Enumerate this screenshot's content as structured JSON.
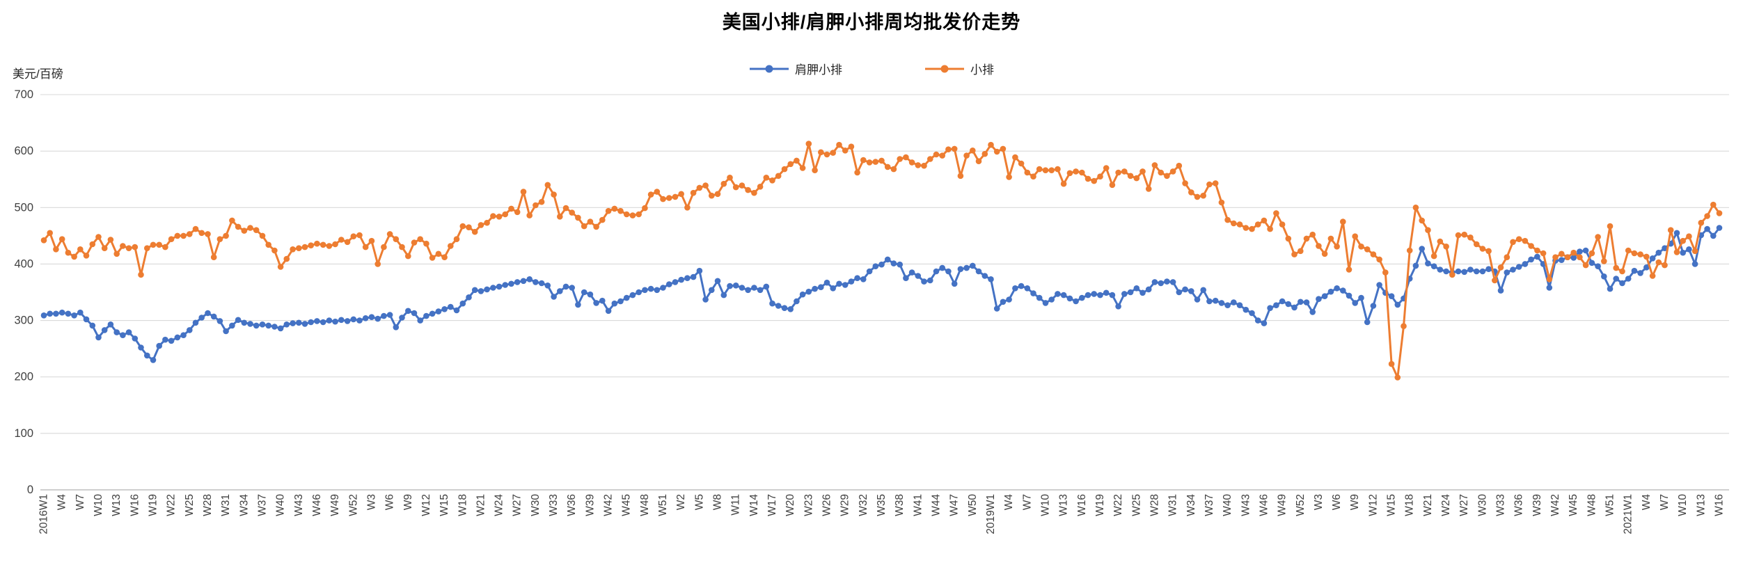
{
  "title": "美国小排/肩胛小排周均批发价走势",
  "y_unit_label": "美元/百磅",
  "colors": {
    "blue_series": "#4472C4",
    "orange_series": "#ED7D31",
    "gridline": "#D9D9D9",
    "axis_line": "#BFBFBF",
    "tick_text": "#404040"
  },
  "chart_data": {
    "type": "line",
    "title": "美国小排/肩胛小排周均批发价走势",
    "ylabel": "美元/百磅",
    "ylim": [
      0,
      700
    ],
    "ytick_step": 100,
    "grid": true,
    "legend_position": "top",
    "marker": "circle",
    "x_label_every": 3,
    "x_labels": [
      "2016W1",
      "W4",
      "W7",
      "W10",
      "W13",
      "W16",
      "W19",
      "W22",
      "W25",
      "W28",
      "W31",
      "W34",
      "W37",
      "W40",
      "W43",
      "W46",
      "W49",
      "W52",
      "W3",
      "W6",
      "W9",
      "W12",
      "W15",
      "W18",
      "W21",
      "W24",
      "W27",
      "W30",
      "W33",
      "W36",
      "W39",
      "W42",
      "W45",
      "W48",
      "W51",
      "W2",
      "W5",
      "W8",
      "W11",
      "W14",
      "W17",
      "W20",
      "W23",
      "W26",
      "W29",
      "W32",
      "W35",
      "W38",
      "W41",
      "W44",
      "W47",
      "W50",
      "2019W1",
      "W4",
      "W7",
      "W10",
      "W13",
      "W16",
      "W19",
      "W22",
      "W25",
      "W28",
      "W31",
      "W34",
      "W37",
      "W40",
      "W43",
      "W46",
      "W49",
      "W52",
      "W3",
      "W6",
      "W9",
      "W12",
      "W15",
      "W18",
      "W21",
      "W24",
      "W27",
      "W30",
      "W33",
      "W36",
      "W39",
      "W42",
      "W45",
      "W48",
      "W51",
      "2021W1",
      "W4",
      "W7",
      "W10",
      "W13",
      "W16"
    ],
    "series": [
      {
        "name": "肩胛小排",
        "color": "#4472C4",
        "values": [
          309,
          312,
          312,
          314,
          312,
          309,
          314,
          302,
          291,
          270,
          283,
          293,
          279,
          274,
          279,
          268,
          252,
          238,
          230,
          255,
          266,
          264,
          270,
          274,
          283,
          296,
          305,
          313,
          307,
          299,
          281,
          291,
          301,
          296,
          294,
          291,
          293,
          291,
          289,
          286,
          293,
          295,
          296,
          294,
          297,
          299,
          297,
          300,
          298,
          301,
          299,
          302,
          300,
          304,
          306,
          303,
          308,
          310,
          288,
          305,
          317,
          313,
          300,
          308,
          312,
          316,
          320,
          324,
          318,
          330,
          341,
          354,
          352,
          355,
          358,
          360,
          363,
          365,
          368,
          370,
          373,
          368,
          366,
          362,
          342,
          352,
          360,
          358,
          328,
          350,
          346,
          331,
          335,
          317,
          330,
          334,
          340,
          345,
          350,
          354,
          356,
          354,
          358,
          364,
          368,
          372,
          375,
          377,
          388,
          337,
          354,
          370,
          345,
          361,
          362,
          358,
          354,
          358,
          354,
          360,
          330,
          326,
          322,
          320,
          334,
          346,
          351,
          356,
          359,
          367,
          357,
          365,
          363,
          369,
          375,
          373,
          387,
          396,
          399,
          408,
          401,
          399,
          375,
          385,
          379,
          369,
          371,
          387,
          393,
          387,
          365,
          391,
          393,
          397,
          387,
          379,
          373,
          321,
          333,
          337,
          357,
          361,
          357,
          348,
          340,
          331,
          337,
          347,
          345,
          339,
          334,
          340,
          345,
          347,
          345,
          349,
          345,
          325,
          347,
          350,
          357,
          349,
          355,
          368,
          366,
          369,
          368,
          350,
          355,
          352,
          337,
          354,
          334,
          335,
          331,
          327,
          332,
          327,
          319,
          313,
          300,
          295,
          322,
          327,
          334,
          329,
          323,
          333,
          332,
          315,
          338,
          343,
          351,
          357,
          353,
          344,
          331,
          340,
          297,
          326,
          363,
          349,
          343,
          328,
          339,
          374,
          397,
          427,
          401,
          396,
          390,
          387,
          385,
          387,
          386,
          390,
          387,
          387,
          391,
          387,
          353,
          385,
          390,
          395,
          400,
          408,
          413,
          400,
          358,
          406,
          407,
          412,
          411,
          422,
          424,
          402,
          396,
          378,
          356,
          374,
          366,
          374,
          388,
          384,
          394,
          410,
          420,
          428,
          436,
          455,
          420,
          426,
          400,
          451,
          462,
          450,
          464
        ]
      },
      {
        "name": "小排",
        "color": "#ED7D31",
        "values": [
          442,
          455,
          426,
          444,
          420,
          413,
          426,
          415,
          435,
          448,
          428,
          443,
          418,
          432,
          428,
          430,
          381,
          428,
          434,
          434,
          430,
          444,
          450,
          450,
          453,
          462,
          455,
          453,
          412,
          444,
          450,
          477,
          466,
          459,
          464,
          460,
          450,
          434,
          424,
          395,
          409,
          426,
          428,
          430,
          433,
          436,
          434,
          432,
          435,
          443,
          439,
          449,
          451,
          430,
          441,
          400,
          430,
          453,
          444,
          430,
          414,
          438,
          444,
          436,
          411,
          418,
          412,
          432,
          444,
          467,
          465,
          457,
          469,
          473,
          485,
          484,
          488,
          498,
          492,
          528,
          486,
          504,
          510,
          540,
          523,
          484,
          499,
          491,
          482,
          467,
          475,
          466,
          478,
          494,
          498,
          494,
          488,
          486,
          488,
          499,
          523,
          528,
          515,
          517,
          519,
          524,
          500,
          526,
          535,
          539,
          521,
          524,
          542,
          553,
          536,
          539,
          531,
          526,
          537,
          553,
          548,
          556,
          568,
          577,
          583,
          570,
          613,
          566,
          598,
          594,
          597,
          611,
          601,
          608,
          562,
          584,
          580,
          581,
          583,
          572,
          568,
          586,
          589,
          580,
          575,
          574,
          586,
          594,
          592,
          603,
          604,
          556,
          592,
          601,
          582,
          595,
          611,
          599,
          604,
          554,
          589,
          578,
          562,
          555,
          568,
          566,
          566,
          568,
          542,
          561,
          564,
          562,
          551,
          547,
          555,
          570,
          540,
          562,
          564,
          556,
          552,
          564,
          533,
          575,
          562,
          556,
          564,
          574,
          543,
          527,
          519,
          521,
          541,
          543,
          509,
          478,
          472,
          470,
          464,
          462,
          470,
          477,
          462,
          490,
          470,
          445,
          417,
          423,
          445,
          452,
          432,
          418,
          445,
          431,
          475,
          390,
          449,
          431,
          426,
          417,
          408,
          385,
          223,
          199,
          290,
          424,
          500,
          477,
          460,
          414,
          440,
          431,
          381,
          451,
          452,
          447,
          435,
          427,
          423,
          371,
          394,
          412,
          439,
          444,
          441,
          432,
          424,
          419,
          373,
          412,
          418,
          412,
          420,
          412,
          398,
          419,
          448,
          405,
          467,
          393,
          387,
          424,
          419,
          417,
          413,
          379,
          403,
          398,
          460,
          421,
          441,
          449,
          423,
          473,
          485,
          505,
          490
        ]
      }
    ]
  }
}
